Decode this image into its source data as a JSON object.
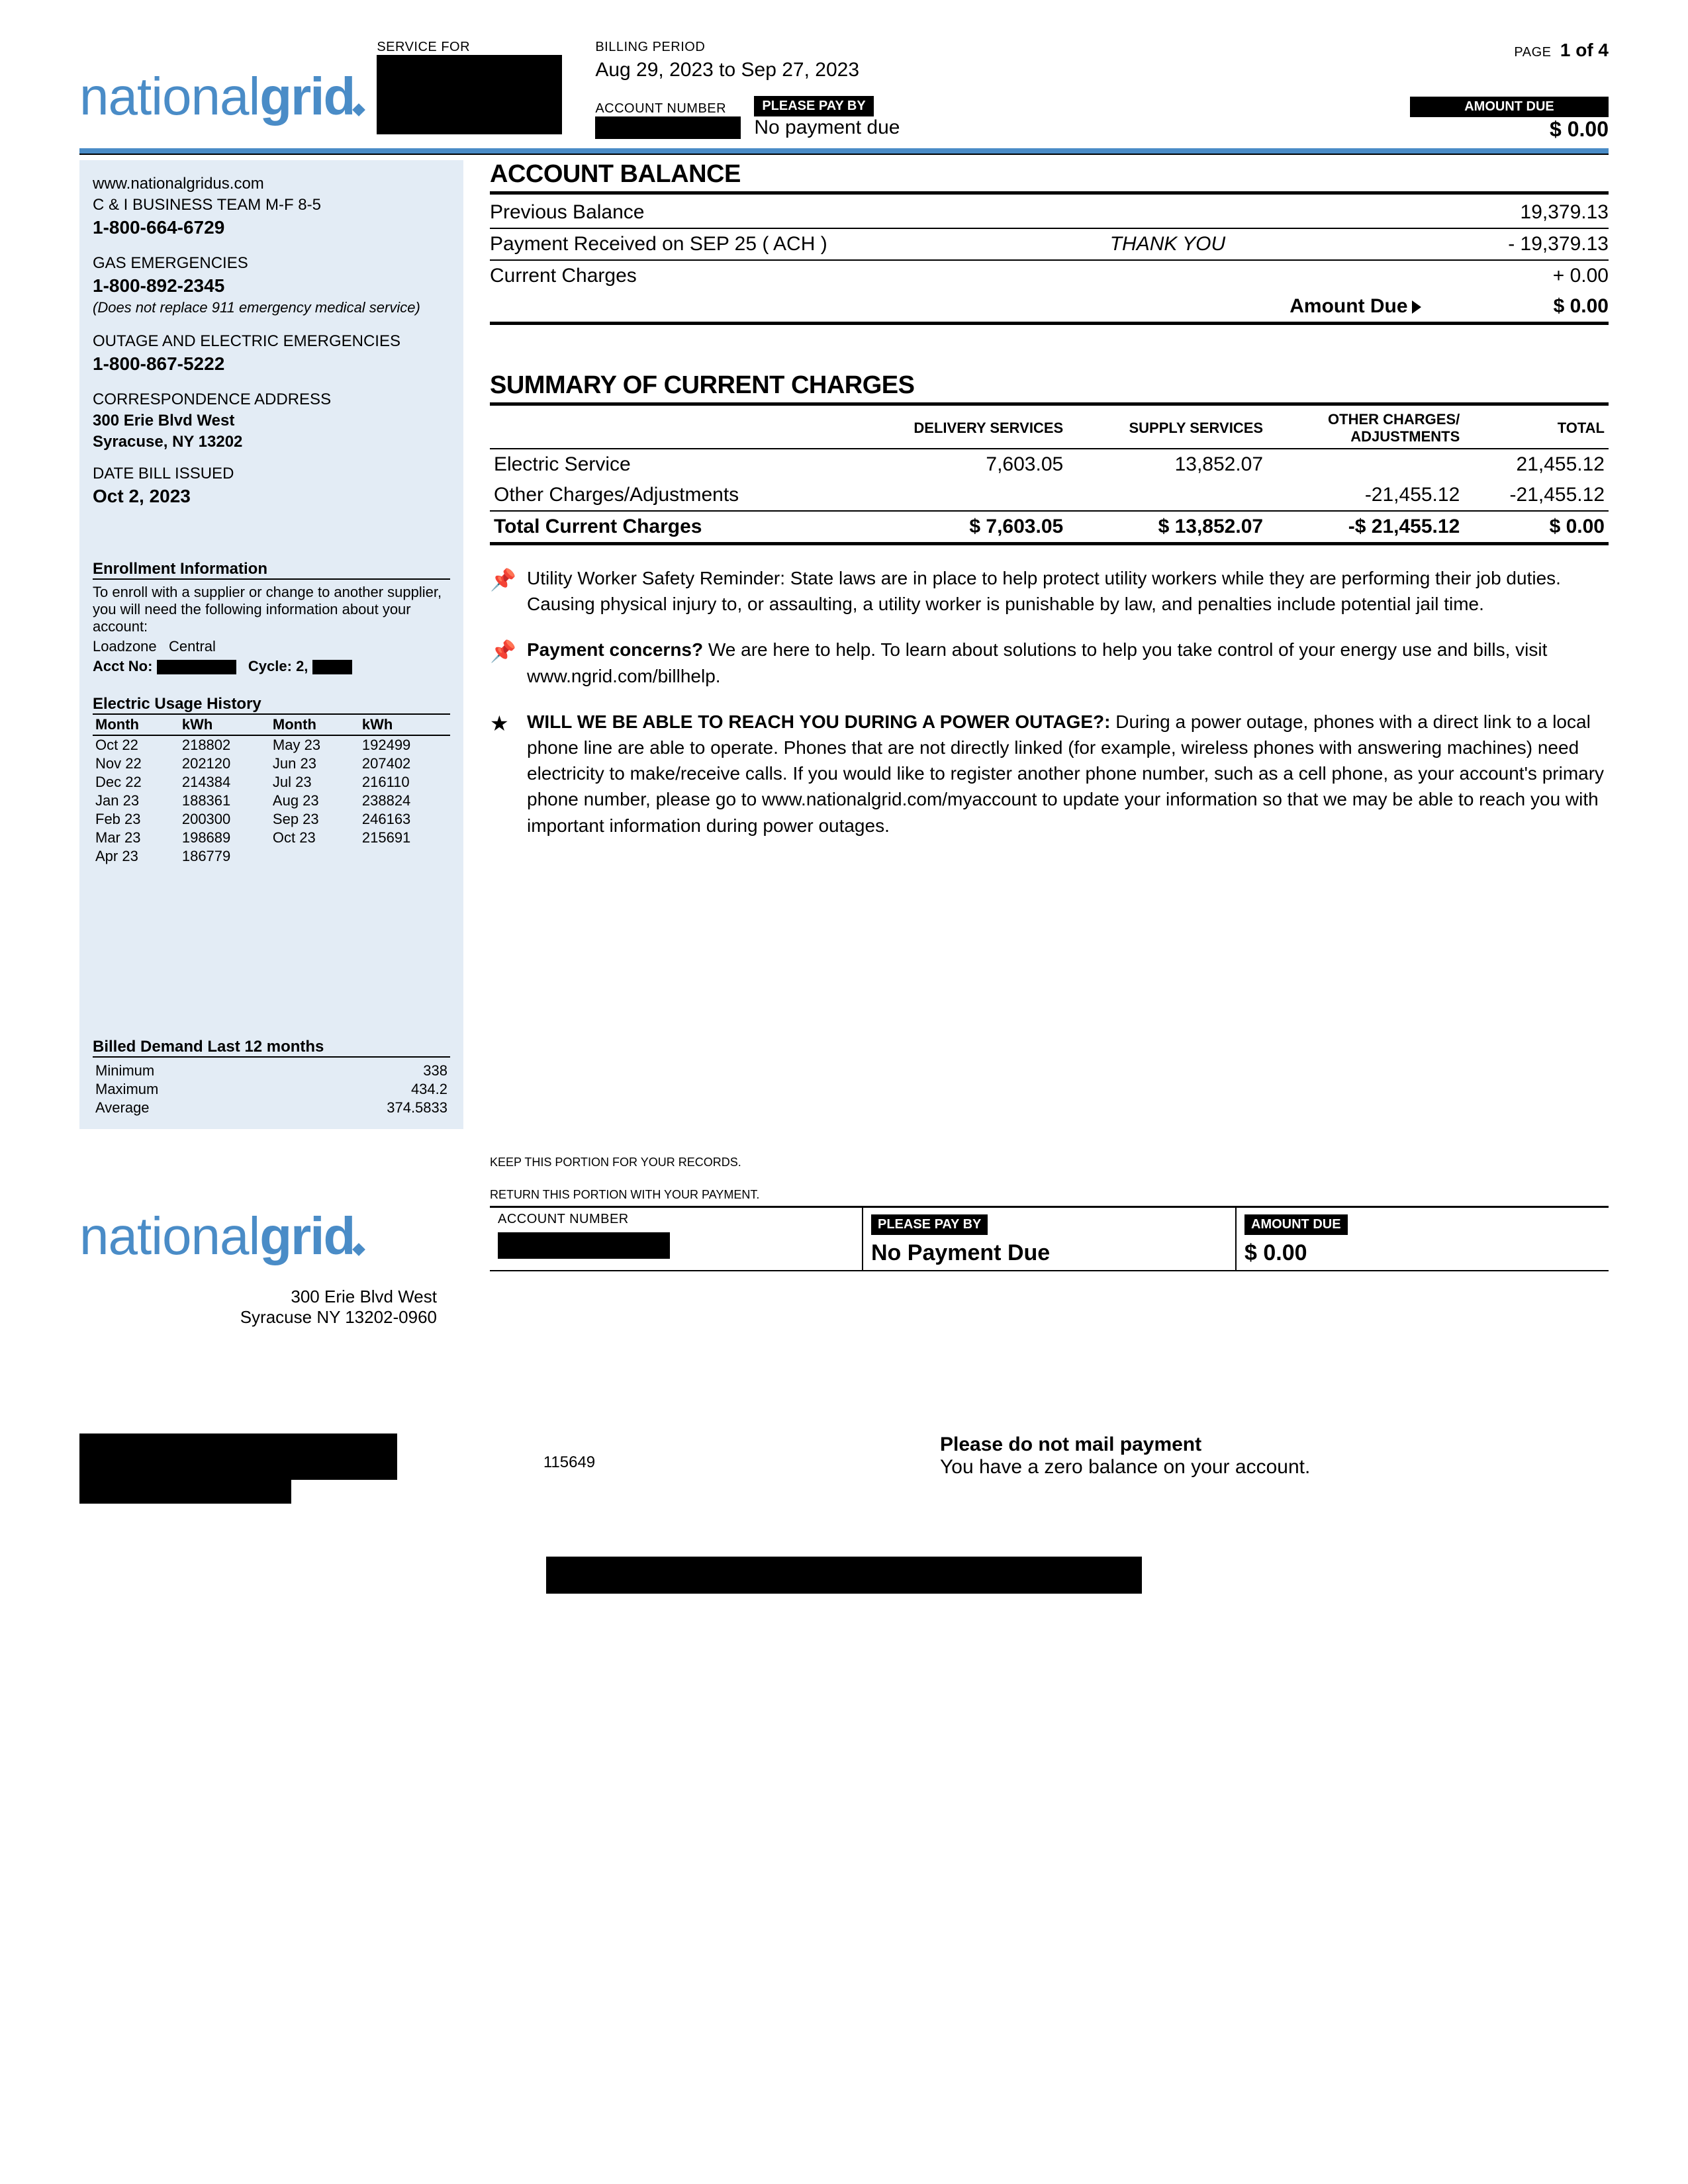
{
  "header": {
    "service_for_label": "SERVICE FOR",
    "billing_period_label": "BILLING PERIOD",
    "billing_period": "Aug 29, 2023  to Sep 27, 2023",
    "page_label": "PAGE",
    "page_value": "1 of 4",
    "account_number_label": "ACCOUNT NUMBER",
    "pay_by_label": "PLEASE PAY BY",
    "pay_by_value": "No payment due",
    "amount_due_label": "AMOUNT DUE",
    "amount_due_value": "$ 0.00"
  },
  "logo": {
    "part1": "national",
    "part2": "grid"
  },
  "sidebar": {
    "website": "www.nationalgridus.com",
    "team_line": "C & I BUSINESS TEAM M-F 8-5",
    "team_phone": "1-800-664-6729",
    "gas_label": "GAS  EMERGENCIES",
    "gas_phone": "1-800-892-2345",
    "gas_note": "(Does not replace 911 emergency medical service)",
    "outage_label": "OUTAGE  AND ELECTRIC EMERGENCIES",
    "outage_phone": "1-800-867-5222",
    "corr_label": "CORRESPONDENCE  ADDRESS",
    "corr_addr1": "300 Erie Blvd West",
    "corr_addr2": "Syracuse, NY 13202",
    "date_issued_label": "DATE BILL ISSUED",
    "date_issued": "Oct 2, 2023",
    "enrollment_title": "Enrollment Information",
    "enrollment_text": "To enroll with a supplier or change to another supplier, you will need the following information about your account:",
    "loadzone_label": "Loadzone",
    "loadzone_value": "Central",
    "acct_label": "Acct No:",
    "cycle_label": "Cycle: 2,",
    "usage_title": "Electric Usage History",
    "usage_cols": [
      "Month",
      "kWh",
      "Month",
      "kWh"
    ],
    "usage_rows": [
      [
        "Oct 22",
        "218802",
        "May 23",
        "192499"
      ],
      [
        "Nov 22",
        "202120",
        "Jun 23",
        "207402"
      ],
      [
        "Dec 22",
        "214384",
        "Jul 23",
        "216110"
      ],
      [
        "Jan 23",
        "188361",
        "Aug 23",
        "238824"
      ],
      [
        "Feb 23",
        "200300",
        "Sep 23",
        "246163"
      ],
      [
        "Mar 23",
        "198689",
        "Oct 23",
        "215691"
      ],
      [
        "Apr 23",
        "186779",
        "",
        ""
      ]
    ],
    "demand_title": "Billed Demand Last 12 months",
    "demand_rows": [
      [
        "Minimum",
        "338"
      ],
      [
        "Maximum",
        "434.2"
      ],
      [
        "Average",
        "374.5833"
      ]
    ]
  },
  "balance": {
    "title": "ACCOUNT BALANCE",
    "rows": [
      {
        "label": "Previous Balance",
        "mid": "",
        "val": "19,379.13"
      },
      {
        "label": "Payment Received on SEP 25 ( ACH )",
        "mid": "THANK YOU",
        "val": "- 19,379.13"
      }
    ],
    "current_label": "Current Charges",
    "current_val": "+ 0.00",
    "due_label": "Amount Due",
    "due_val": "$ 0.00"
  },
  "summary": {
    "title": "SUMMARY OF CURRENT CHARGES",
    "cols": [
      "",
      "DELIVERY SERVICES",
      "SUPPLY SERVICES",
      "OTHER CHARGES/ ADJUSTMENTS",
      "TOTAL"
    ],
    "rows": [
      [
        "Electric Service",
        "7,603.05",
        "13,852.07",
        "",
        "21,455.12"
      ],
      [
        "Other Charges/Adjustments",
        "",
        "",
        "-21,455.12",
        "-21,455.12"
      ]
    ],
    "total": [
      "Total Current Charges",
      "$ 7,603.05",
      "$ 13,852.07",
      "-$ 21,455.12",
      "$ 0.00"
    ]
  },
  "notices": [
    {
      "icon": "pin",
      "text": "Utility Worker Safety Reminder: State laws are in place to help protect utility workers while they are performing their job duties. Causing physical injury to, or assaulting, a utility worker is punishable by law, and penalties include potential jail time."
    },
    {
      "icon": "pin",
      "bold": "Payment concerns?",
      "text": "  We are here to help.  To learn about solutions to help you take control of your energy use and bills, visit www.ngrid.com/billhelp."
    },
    {
      "icon": "star",
      "bold": "WILL WE BE ABLE TO REACH YOU DURING A POWER OUTAGE?:",
      "text": "   During a power outage, phones with a direct link to a local phone line are able to operate.  Phones that are  not  directly linked (for example, wireless phones with answering machines) need electricity to make/receive calls.  If you would like to register another phone number, such as a cell phone, as your account's primary phone number, please go to www.nationalgrid.com/myaccount to update your information so that we may be able to reach you with important information during power outages."
    }
  ],
  "stub": {
    "keep_note": "KEEP THIS PORTION FOR YOUR RECORDS.",
    "return_note": "RETURN THIS PORTION WITH YOUR PAYMENT.",
    "acct_label": "ACCOUNT NUMBER",
    "payby_label": "PLEASE PAY BY",
    "payby_val": "No Payment Due",
    "amt_label": "AMOUNT DUE",
    "amt_val": "$ 0.00",
    "addr1": "300 Erie Blvd West",
    "addr2": "Syracuse NY 13202-0960",
    "seq": "115649",
    "mail_bold": "Please do not mail payment",
    "mail_text": "You have a zero balance on your account."
  },
  "colors": {
    "brand_blue": "#4a8cc7",
    "sidebar_bg": "#e3ecf5"
  }
}
